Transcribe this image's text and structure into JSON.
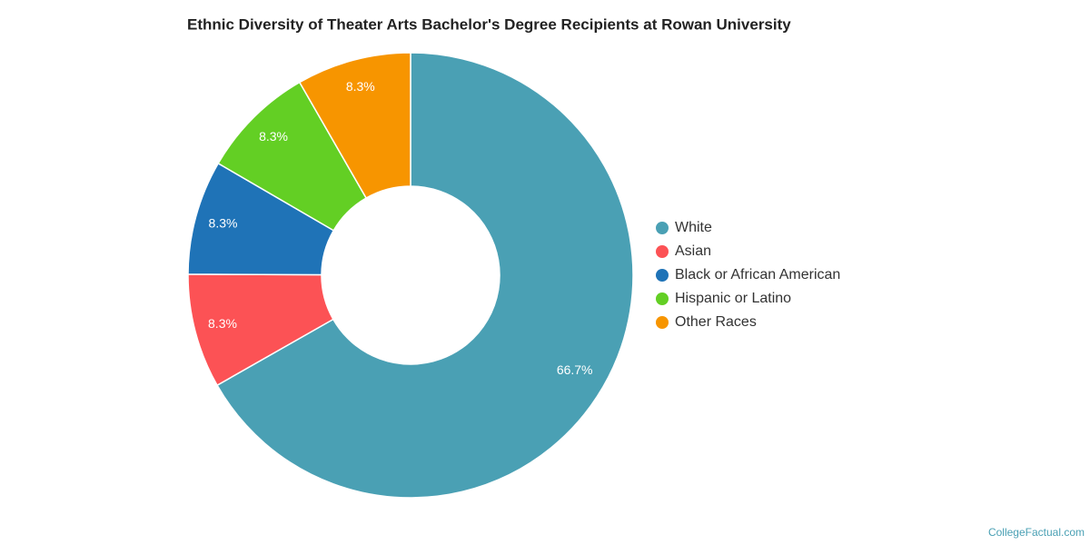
{
  "chart_data": {
    "type": "pie",
    "title": "Ethnic Diversity of Theater Arts Bachelor's Degree Recipients at Rowan University",
    "categories": [
      "White",
      "Asian",
      "Black or African American",
      "Hispanic or Latino",
      "Other Races"
    ],
    "values": [
      66.7,
      8.3,
      8.3,
      8.3,
      8.3
    ],
    "value_labels": [
      "66.7%",
      "8.3%",
      "8.3%",
      "8.3%",
      "8.3%"
    ],
    "colors": [
      "#4aa0b4",
      "#fc5255",
      "#1f73b7",
      "#63cf24",
      "#f79500"
    ],
    "legend": "right",
    "source": "CollegeFactual.com"
  }
}
